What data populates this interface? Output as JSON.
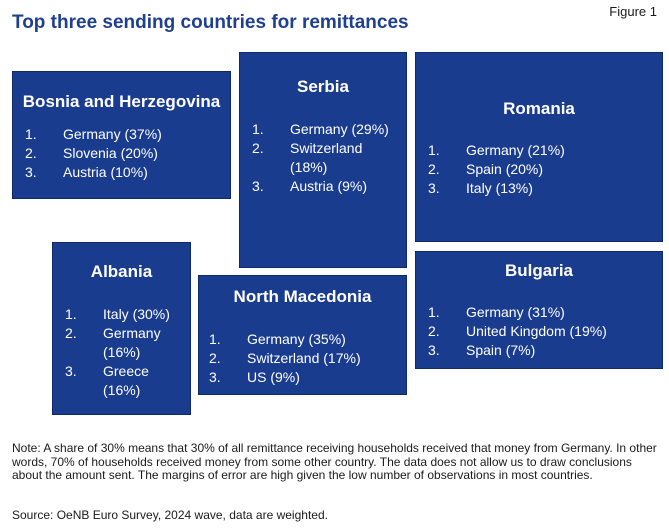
{
  "figure_label": "Figure 1",
  "title": "Top three sending countries for remittances",
  "boxes": {
    "bosnia": {
      "name": "Bosnia and Herzegovina",
      "items": [
        {
          "num": "1.",
          "text": "Germany (37%)"
        },
        {
          "num": "2.",
          "text": "Slovenia (20%)"
        },
        {
          "num": "3.",
          "text": "Austria (10%)"
        }
      ]
    },
    "serbia": {
      "name": "Serbia",
      "items": [
        {
          "num": "1.",
          "text": "Germany (29%)"
        },
        {
          "num": "2.",
          "text": "Switzerland (18%)"
        },
        {
          "num": "3.",
          "text": "Austria (9%)"
        }
      ]
    },
    "romania": {
      "name": "Romania",
      "items": [
        {
          "num": "1.",
          "text": "Germany (21%)"
        },
        {
          "num": "2.",
          "text": "Spain (20%)"
        },
        {
          "num": "3.",
          "text": "Italy (13%)"
        }
      ]
    },
    "albania": {
      "name": "Albania",
      "items": [
        {
          "num": "1.",
          "text": "Italy (30%)"
        },
        {
          "num": "2.",
          "text": "Germany (16%)"
        },
        {
          "num": "3.",
          "text": "Greece (16%)"
        }
      ]
    },
    "north_macedonia": {
      "name": "North Macedonia",
      "items": [
        {
          "num": "1.",
          "text": "Germany (35%)"
        },
        {
          "num": "2.",
          "text": "Switzerland (17%)"
        },
        {
          "num": "3.",
          "text": "US (9%)"
        }
      ]
    },
    "bulgaria": {
      "name": "Bulgaria",
      "items": [
        {
          "num": "1.",
          "text": "Germany (31%)"
        },
        {
          "num": "2.",
          "text": "United Kingdom (19%)"
        },
        {
          "num": "3.",
          "text": "Spain (7%)"
        }
      ]
    }
  },
  "note": "Note: A share of 30% means that 30% of all remittance receiving households received that money from Germany. In other words, 70% of households received money from some other country. The data does not allow us to draw conclusions about the amount sent. The margins of error are high given the low number of observations in most countries.",
  "source": "Source: OeNB Euro Survey, 2024 wave, data are weighted.",
  "colors": {
    "box_fill": "#1a3c8f",
    "title": "#1f3f8f",
    "box_text": "#ffffff"
  }
}
